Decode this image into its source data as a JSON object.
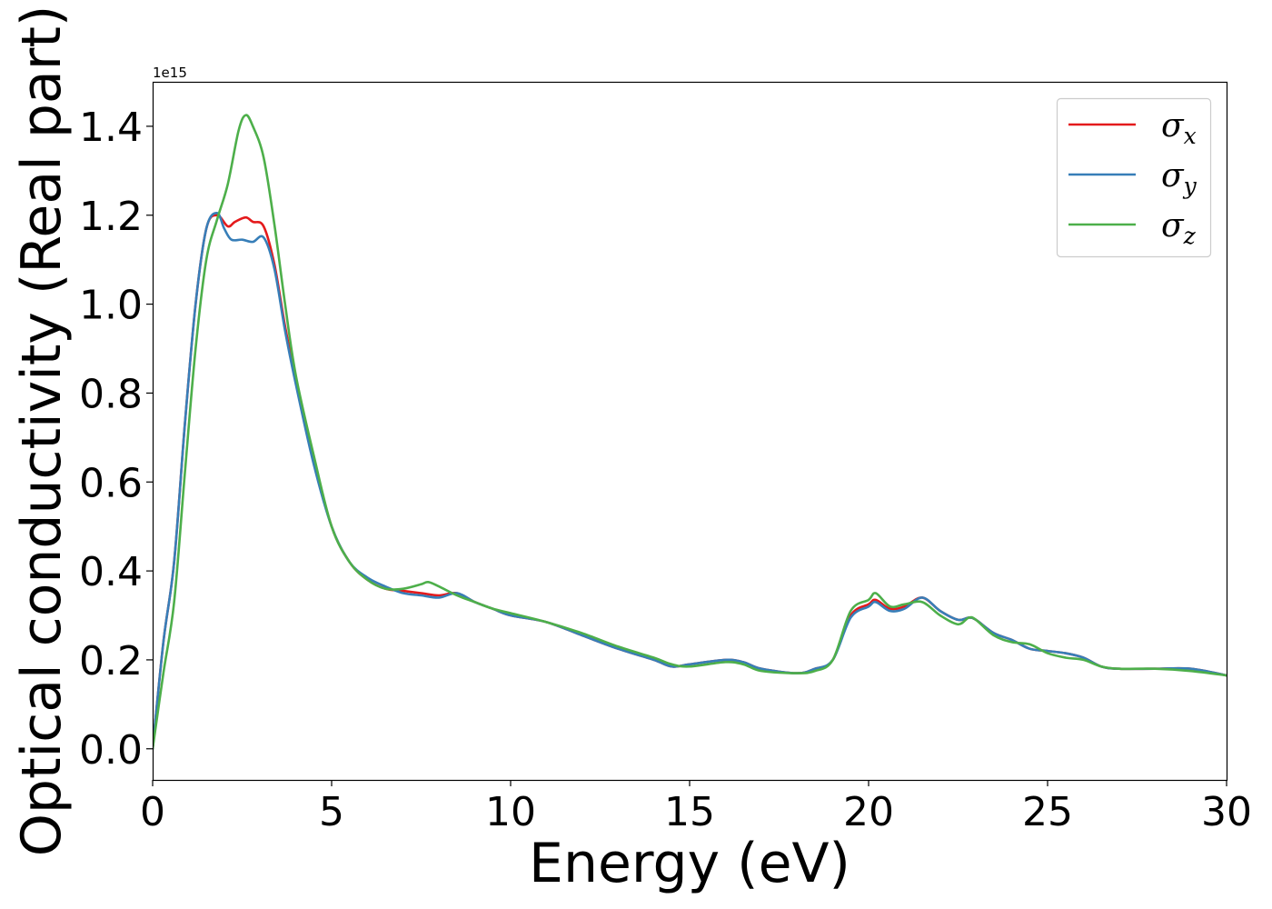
{
  "chart_data": {
    "type": "line",
    "xlabel": "Energy (eV)",
    "ylabel": "Optical conductivity (Real part)",
    "y_offset_label": "1e15",
    "xlim": [
      0,
      30
    ],
    "ylim": [
      -0.07,
      1.5
    ],
    "xticks": [
      0,
      5,
      10,
      15,
      20,
      25,
      30
    ],
    "xtick_labels": [
      "0",
      "5",
      "10",
      "15",
      "20",
      "25",
      "30"
    ],
    "yticks": [
      0.0,
      0.2,
      0.4,
      0.6,
      0.8,
      1.0,
      1.2,
      1.4
    ],
    "ytick_labels": [
      "0.0",
      "0.2",
      "0.4",
      "0.6",
      "0.8",
      "1.0",
      "1.2",
      "1.4"
    ],
    "grid": false,
    "legend_position": "top-right",
    "series": [
      {
        "name": "σx",
        "symbol": "σ",
        "subscript": "x",
        "color": "#e41a1c",
        "x": [
          0,
          0.3,
          0.6,
          0.9,
          1.2,
          1.5,
          1.8,
          2.1,
          2.3,
          2.6,
          2.8,
          3.1,
          3.4,
          3.7,
          4.0,
          4.5,
          5.0,
          5.5,
          6.0,
          6.5,
          7.0,
          7.5,
          8.0,
          8.5,
          9.0,
          9.5,
          10.0,
          11.0,
          12.0,
          13.0,
          14.0,
          14.5,
          15.0,
          16.0,
          16.5,
          17.0,
          18.0,
          18.5,
          19.0,
          19.5,
          20.0,
          20.2,
          20.6,
          21.0,
          21.5,
          22.0,
          22.5,
          22.8,
          23.0,
          23.5,
          24.0,
          24.5,
          25.0,
          25.5,
          26.0,
          26.5,
          27.0,
          28.0,
          29.0,
          30.0
        ],
        "y": [
          0.0,
          0.24,
          0.42,
          0.73,
          1.0,
          1.17,
          1.2,
          1.175,
          1.185,
          1.195,
          1.185,
          1.175,
          1.09,
          0.95,
          0.83,
          0.65,
          0.5,
          0.42,
          0.38,
          0.36,
          0.355,
          0.35,
          0.345,
          0.35,
          0.33,
          0.315,
          0.3,
          0.285,
          0.255,
          0.225,
          0.2,
          0.185,
          0.19,
          0.2,
          0.195,
          0.18,
          0.17,
          0.18,
          0.2,
          0.3,
          0.325,
          0.335,
          0.315,
          0.32,
          0.34,
          0.31,
          0.29,
          0.295,
          0.29,
          0.26,
          0.245,
          0.225,
          0.22,
          0.215,
          0.205,
          0.185,
          0.18,
          0.18,
          0.18,
          0.165
        ]
      },
      {
        "name": "σy",
        "symbol": "σ",
        "subscript": "y",
        "color": "#377eb8",
        "x": [
          0,
          0.3,
          0.6,
          0.9,
          1.2,
          1.5,
          1.8,
          2.0,
          2.2,
          2.5,
          2.8,
          3.1,
          3.4,
          3.7,
          4.0,
          4.5,
          5.0,
          5.5,
          6.0,
          6.5,
          7.0,
          7.5,
          8.0,
          8.5,
          9.0,
          9.5,
          10.0,
          11.0,
          12.0,
          13.0,
          14.0,
          14.5,
          15.0,
          16.0,
          16.5,
          17.0,
          18.0,
          18.5,
          19.0,
          19.5,
          20.0,
          20.2,
          20.6,
          21.0,
          21.5,
          22.0,
          22.5,
          22.8,
          23.0,
          23.5,
          24.0,
          24.5,
          25.0,
          25.5,
          26.0,
          26.5,
          27.0,
          28.0,
          29.0,
          30.0
        ],
        "y": [
          0.0,
          0.24,
          0.42,
          0.73,
          1.0,
          1.17,
          1.205,
          1.17,
          1.145,
          1.145,
          1.14,
          1.15,
          1.08,
          0.94,
          0.82,
          0.64,
          0.5,
          0.42,
          0.385,
          0.365,
          0.35,
          0.345,
          0.34,
          0.35,
          0.33,
          0.315,
          0.3,
          0.285,
          0.255,
          0.225,
          0.2,
          0.185,
          0.19,
          0.2,
          0.195,
          0.18,
          0.17,
          0.18,
          0.2,
          0.295,
          0.32,
          0.33,
          0.31,
          0.315,
          0.34,
          0.31,
          0.29,
          0.295,
          0.29,
          0.26,
          0.245,
          0.225,
          0.22,
          0.215,
          0.205,
          0.185,
          0.18,
          0.18,
          0.18,
          0.165
        ]
      },
      {
        "name": "σz",
        "symbol": "σ",
        "subscript": "z",
        "color": "#4daf4a",
        "x": [
          0,
          0.3,
          0.6,
          0.9,
          1.2,
          1.5,
          1.8,
          2.1,
          2.4,
          2.6,
          2.8,
          3.1,
          3.4,
          3.7,
          4.0,
          4.5,
          5.0,
          5.5,
          6.0,
          6.5,
          7.0,
          7.5,
          7.7,
          8.0,
          8.5,
          9.0,
          9.5,
          10.0,
          11.0,
          12.0,
          13.0,
          14.0,
          14.5,
          15.0,
          16.0,
          16.5,
          17.0,
          18.0,
          18.5,
          19.0,
          19.5,
          20.0,
          20.2,
          20.6,
          21.0,
          21.5,
          22.0,
          22.5,
          22.8,
          23.0,
          23.5,
          24.0,
          24.5,
          25.0,
          25.5,
          26.0,
          26.5,
          27.0,
          28.0,
          29.0,
          30.0
        ],
        "y": [
          0.0,
          0.17,
          0.33,
          0.62,
          0.9,
          1.1,
          1.19,
          1.27,
          1.39,
          1.425,
          1.4,
          1.33,
          1.18,
          1.0,
          0.84,
          0.66,
          0.5,
          0.42,
          0.38,
          0.36,
          0.36,
          0.37,
          0.375,
          0.365,
          0.345,
          0.33,
          0.315,
          0.305,
          0.285,
          0.26,
          0.23,
          0.205,
          0.19,
          0.185,
          0.195,
          0.19,
          0.175,
          0.17,
          0.175,
          0.2,
          0.31,
          0.335,
          0.35,
          0.32,
          0.325,
          0.33,
          0.3,
          0.28,
          0.295,
          0.29,
          0.255,
          0.24,
          0.235,
          0.215,
          0.205,
          0.2,
          0.185,
          0.18,
          0.18,
          0.175,
          0.165
        ]
      }
    ]
  }
}
